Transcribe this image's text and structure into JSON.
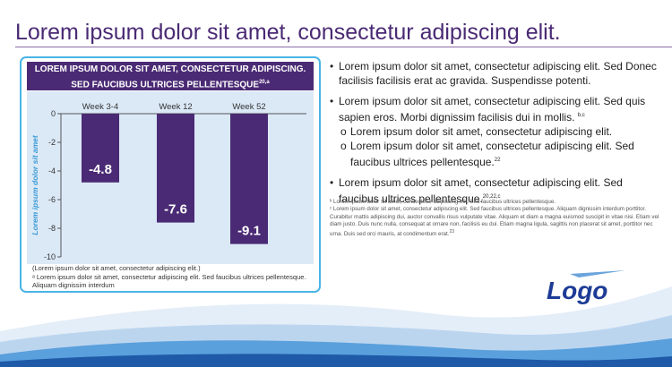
{
  "slide": {
    "title": "Lorem ipsum dolor sit amet, consectetur adipiscing elit."
  },
  "chart_card": {
    "header_line1": "LOREM IPSUM DOLOR SIT AMET, CONSECTETUR ADIPISCING.",
    "header_line2": "SED FAUCIBUS ULTRICES PELLENTESQUE",
    "header_sup": "20,a",
    "footnote1": "(Lorem ipsum dolor sit amet, consectetur adipiscing elit.)",
    "footnote2": "ᵃ Lorem ipsum dolor sit amet, consectetur adipiscing elit. Sed faucibus ultrices pellentesque. Aliquam dignissim interdum"
  },
  "chart_data": {
    "type": "bar",
    "title": "LOREM IPSUM DOLOR SIT AMET, CONSECTETUR ADIPISCING. SED FAUCIBUS ULTRICES PELLENTESQUE",
    "categories": [
      "Week 3-4",
      "Week 12",
      "Week 52"
    ],
    "values": [
      -4.8,
      -7.6,
      -9.1
    ],
    "value_labels": [
      "-4.8",
      "-7.6",
      "-9.1"
    ],
    "ylabel": "Lorem ipsum dolor sit amet",
    "xlabel": "",
    "ylim": [
      -10,
      0
    ],
    "yticks": [
      0,
      -2,
      -4,
      -6,
      -8,
      -10
    ],
    "ytick_labels": [
      "0",
      "-2",
      "-4",
      "-6",
      "-8",
      "-10"
    ],
    "x_axis_position": "top",
    "grid": false,
    "legend": "none",
    "colors": {
      "bar": "#4a2a74",
      "plot_background": "#dbe9f7",
      "label_text": "#ffffff"
    }
  },
  "bullets": [
    {
      "text": "Lorem ipsum dolor sit amet, consectetur adipiscing elit. Sed Donec facilisis facilisis erat ac gravida. Suspendisse potenti.",
      "sup": ""
    },
    {
      "text": "Lorem ipsum dolor sit amet, consectetur adipiscing elit. Sed quis sapien eros. Morbi dignissim facilisis dui in mollis.",
      "sup": "b,c",
      "subs": [
        {
          "text": "Lorem ipsum dolor sit amet, consectetur adipiscing elit.",
          "sup": ""
        },
        {
          "text": "Lorem ipsum dolor sit amet, consectetur adipiscing elit. Sed faucibus ultrices pellentesque.",
          "sup": "22"
        }
      ]
    },
    {
      "text": "Lorem ipsum dolor sit amet, consectetur adipiscing elit. Sed faucibus ultrices pellentesque.",
      "sup": "20,22,c"
    }
  ],
  "references": {
    "ref_b": "ᵇ Lorem ipsum dolor sit amet, consectetur adipiscing elit. Sed faucibus ultrices pellentesque.",
    "ref_c": "ᶜ Lorem ipsum dolor sit amet, consectetur adipiscing elit. Sed faucibus ultrices pellentesque. Aliquam dignissim interdum porttitor. Curabitur mattis adipiscing dui, auctor convallis risus vulputate vitae. Aliquam et diam a magna euismod suscipit in vitae nisi. Etiam vel diam justo. Duis nunc nulla, consequat at ornare non, facilisis eu dui. Etiam magna ligula, sagittis non placerat sit amet, porttitor nec urna. Duis sed orci mauris, at condimentum erat.",
    "ref_c_sup": "23"
  },
  "logo": {
    "text": "Logo"
  },
  "colors": {
    "title": "#4a2a74",
    "accent_border": "#4ab4e6",
    "header_bg": "#4a2a74",
    "logo_blue": "#1e3c96"
  }
}
